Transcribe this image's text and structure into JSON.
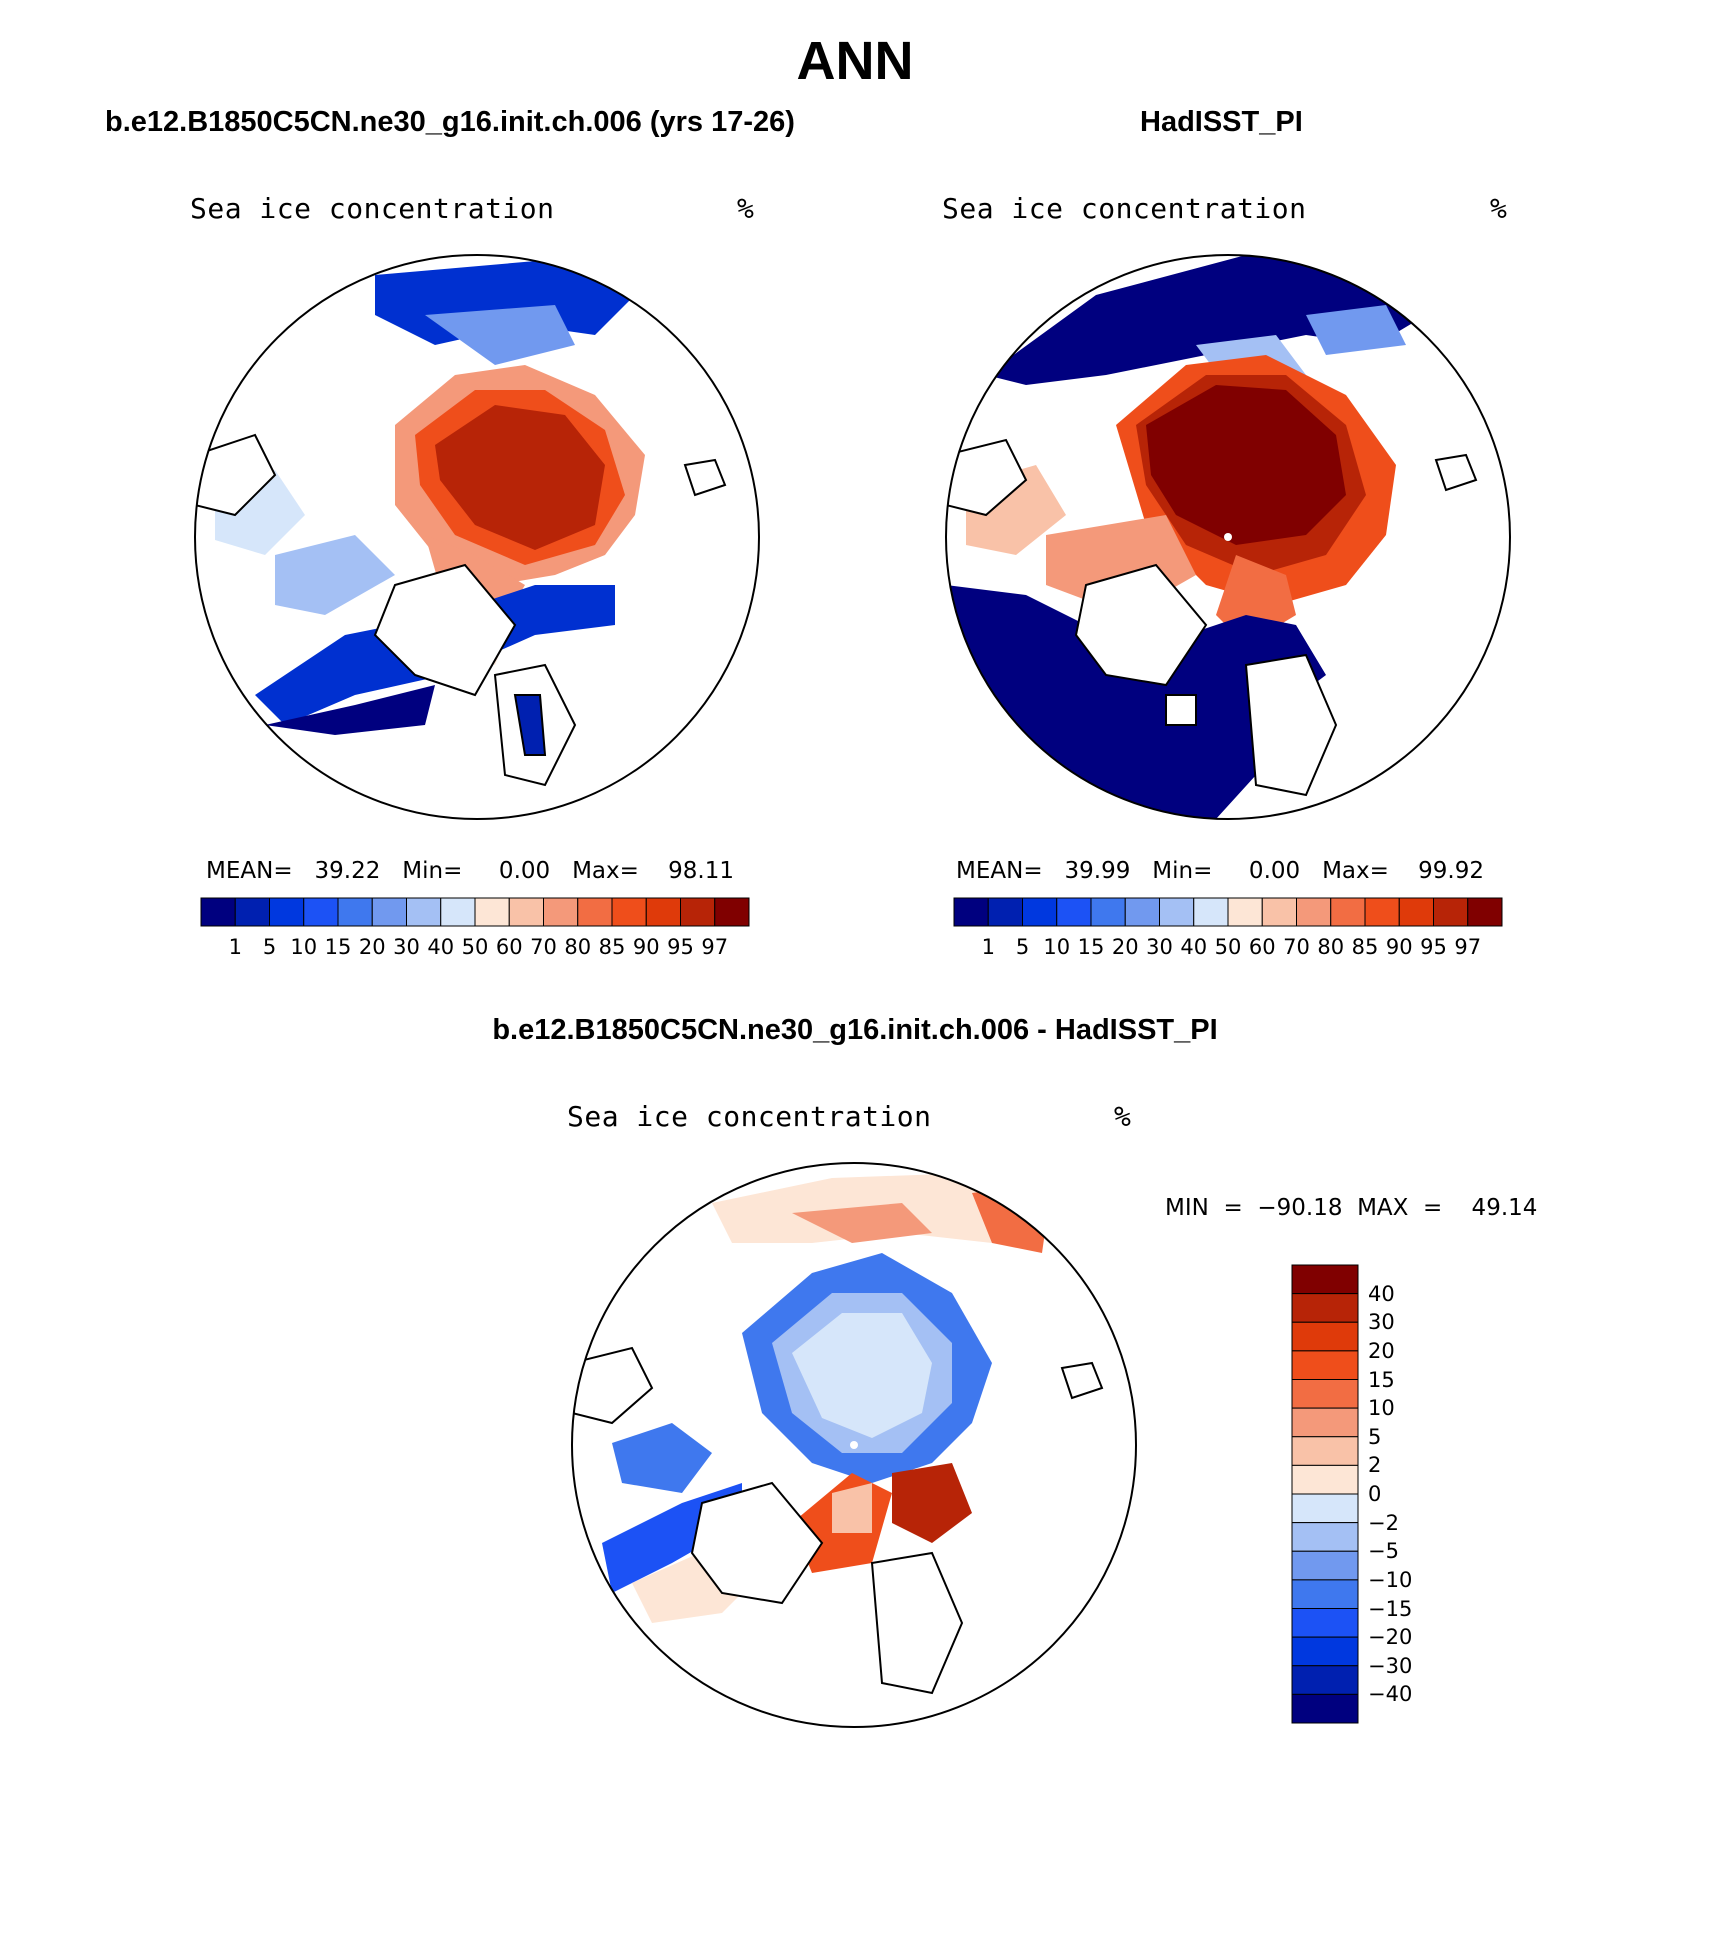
{
  "figure": {
    "title": "ANN"
  },
  "panels": [
    {
      "title": "b.e12.B1850C5CN.ne30_g16.init.ch.006 (yrs 17-26)",
      "variable": "Sea ice concentration",
      "units": "%",
      "stats_text": "MEAN=   39.22   Min=     0.00   Max=    98.11"
    },
    {
      "title": "HadISST_PI",
      "variable": "Sea ice concentration",
      "units": "%",
      "stats_text": "MEAN=   39.99   Min=     0.00   Max=    99.92"
    },
    {
      "title": "b.e12.B1850C5CN.ne30_g16.init.ch.006 - HadISST_PI",
      "variable": "Sea ice concentration",
      "units": "%",
      "stats_text": "MIN  =  −90.18  MAX  =    49.14"
    }
  ],
  "colorbars": {
    "concentration": {
      "labels": [
        "1",
        "5",
        "10",
        "15",
        "20",
        "30",
        "40",
        "50",
        "60",
        "70",
        "80",
        "85",
        "90",
        "95",
        "97"
      ],
      "colors": [
        "#00007f",
        "#0020b0",
        "#0038df",
        "#1c52f5",
        "#3f78ee",
        "#7199ef",
        "#a4c0f4",
        "#d6e6fa",
        "#fde6d6",
        "#f9c2a8",
        "#f4997a",
        "#f26d43",
        "#ef4e1b",
        "#df3a0a",
        "#b72407",
        "#800000"
      ]
    },
    "difference": {
      "labels": [
        "40",
        "30",
        "20",
        "15",
        "10",
        "5",
        "2",
        "0",
        "−2",
        "−5",
        "−10",
        "−15",
        "−20",
        "−30",
        "−40"
      ],
      "colors": [
        "#800000",
        "#b72407",
        "#df3a0a",
        "#ef4e1b",
        "#f26d43",
        "#f4997a",
        "#f9c2a8",
        "#fde6d6",
        "#d6e6fa",
        "#a4c0f4",
        "#7199ef",
        "#3f78ee",
        "#1c52f5",
        "#0038df",
        "#0020b0",
        "#00007f"
      ]
    }
  }
}
